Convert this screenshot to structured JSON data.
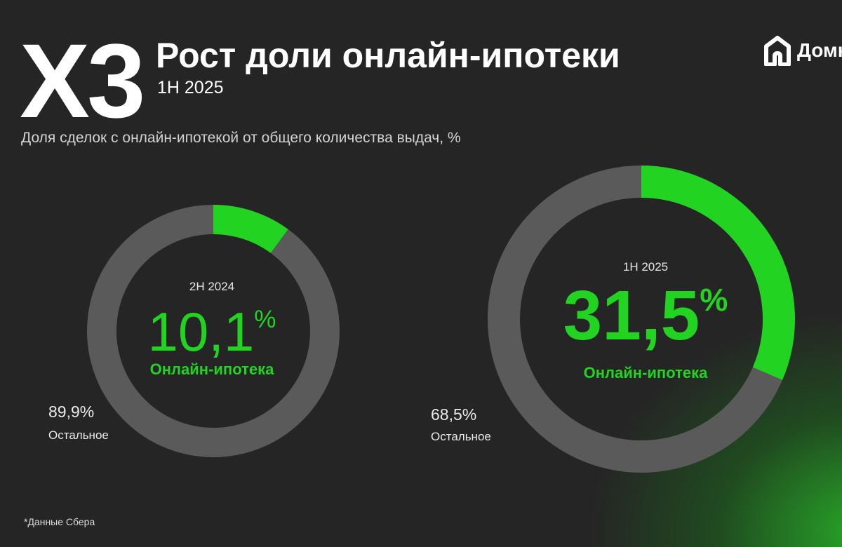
{
  "header": {
    "multiplier": "X3",
    "title": "Рост доли онлайн-ипотеки",
    "period": "1H 2025",
    "subtitle": "Доля сделок с онлайн-ипотекой от общего количества выдач, %",
    "logo_text": "Домк",
    "logo_icon": "house-icon"
  },
  "colors": {
    "accent": "#22d322",
    "ring_gray": "#5a5a5a",
    "background": "#252525"
  },
  "chart_data": [
    {
      "type": "pie",
      "period_label": "2H 2024",
      "slices": [
        {
          "label": "Онлайн-ипотека",
          "value": 10.1,
          "display": "10,1",
          "color": "#22d322"
        },
        {
          "label": "Остальное",
          "value": 89.9,
          "display": "89,9%",
          "color": "#5a5a5a"
        }
      ],
      "percent_sign": "%"
    },
    {
      "type": "pie",
      "period_label": "1H 2025",
      "slices": [
        {
          "label": "Онлайн-ипотека",
          "value": 31.5,
          "display": "31,5",
          "color": "#22d322"
        },
        {
          "label": "Остальное",
          "value": 68.5,
          "display": "68,5%",
          "color": "#5a5a5a"
        }
      ],
      "percent_sign": "%"
    }
  ],
  "footnote": "*Данные Сбера"
}
